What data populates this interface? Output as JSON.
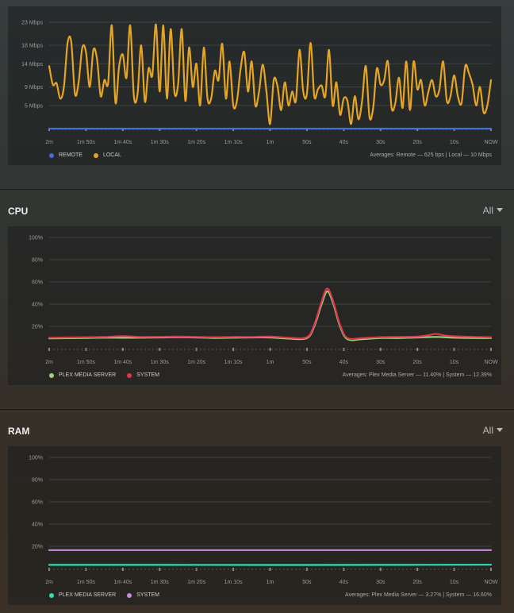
{
  "colors": {
    "remote": "#3f6fd8",
    "local": "#e5a524",
    "pms_cpu": "#9bd27a",
    "system_cpu": "#e0344f",
    "pms_ram": "#2ce0b4",
    "system_ram": "#c58de0",
    "grid": "#3e4343",
    "tick": "#8a8a8a"
  },
  "x_tick_labels": [
    "2m",
    "1m 50s",
    "1m 40s",
    "1m 30s",
    "1m 20s",
    "1m 10s",
    "1m",
    "50s",
    "40s",
    "30s",
    "20s",
    "10s",
    "NOW"
  ],
  "bandwidth": {
    "legend": [
      {
        "name": "REMOTE",
        "color_key": "remote"
      },
      {
        "name": "LOCAL",
        "color_key": "local"
      }
    ],
    "averages": "Averages: Remote — 625 bps | Local — 10 Mbps"
  },
  "cpu": {
    "title": "CPU",
    "range": "All",
    "legend": [
      {
        "name": "PLEX MEDIA SERVER",
        "color_key": "pms_cpu"
      },
      {
        "name": "SYSTEM",
        "color_key": "system_cpu"
      }
    ],
    "averages": "Averages: Plex Media Server — 11.40% | System — 12.39%"
  },
  "ram": {
    "title": "RAM",
    "range": "All",
    "legend": [
      {
        "name": "PLEX MEDIA SERVER",
        "color_key": "pms_ram"
      },
      {
        "name": "SYSTEM",
        "color_key": "system_ram"
      }
    ],
    "averages": "Averages: Plex Media Server — 3.27% | System — 16.60%"
  },
  "chart_data": [
    {
      "type": "line",
      "x_labels": [
        "2m",
        "1m 50s",
        "1m 40s",
        "1m 30s",
        "1m 20s",
        "1m 10s",
        "1m",
        "50s",
        "40s",
        "30s",
        "20s",
        "10s",
        "NOW"
      ],
      "y_tick_labels": [
        "5 Mbps",
        "9 Mbps",
        "14 Mbps",
        "18 Mbps",
        "23 Mbps"
      ],
      "y_ticks": [
        5,
        9,
        14,
        18,
        23
      ],
      "ylim": [
        0,
        24
      ],
      "x_seconds_ago_range": [
        120,
        0
      ],
      "series": [
        {
          "name": "REMOTE",
          "color_key": "remote",
          "points": [
            [
              120,
              0.0
            ],
            [
              0,
              0.0
            ]
          ]
        },
        {
          "name": "LOCAL",
          "color_key": "local",
          "points": [
            [
              120,
              13.5
            ],
            [
              119,
              9.5
            ],
            [
              118,
              9.8
            ],
            [
              117,
              6.5
            ],
            [
              116,
              9.0
            ],
            [
              115,
              18.5
            ],
            [
              114,
              18.7
            ],
            [
              113,
              7.5
            ],
            [
              112,
              10.0
            ],
            [
              111,
              17.5
            ],
            [
              110,
              16.5
            ],
            [
              109,
              9.0
            ],
            [
              108,
              17.0
            ],
            [
              107,
              15.0
            ],
            [
              106,
              7.0
            ],
            [
              105,
              10.5
            ],
            [
              104,
              9.8
            ],
            [
              103,
              22.3
            ],
            [
              102,
              5.6
            ],
            [
              101,
              13.5
            ],
            [
              100,
              16.0
            ],
            [
              99,
              11.0
            ],
            [
              98,
              22.3
            ],
            [
              97,
              7.0
            ],
            [
              96,
              7.5
            ],
            [
              95,
              18.0
            ],
            [
              94,
              5.8
            ],
            [
              93,
              13.0
            ],
            [
              92,
              11.5
            ],
            [
              91,
              22.5
            ],
            [
              90,
              8.0
            ],
            [
              89,
              22.3
            ],
            [
              88,
              6.5
            ],
            [
              87,
              21.5
            ],
            [
              86,
              8.0
            ],
            [
              85,
              9.5
            ],
            [
              84,
              21.5
            ],
            [
              83,
              6.0
            ],
            [
              82,
              17.5
            ],
            [
              81,
              9.0
            ],
            [
              80,
              14.0
            ],
            [
              79,
              5.0
            ],
            [
              78,
              17.5
            ],
            [
              77,
              6.5
            ],
            [
              76,
              6.5
            ],
            [
              75,
              12.5
            ],
            [
              74,
              10.5
            ],
            [
              73,
              18.3
            ],
            [
              72,
              6.5
            ],
            [
              71,
              14.5
            ],
            [
              70,
              5.0
            ],
            [
              69,
              6.0
            ],
            [
              68,
              13.0
            ],
            [
              67,
              16.5
            ],
            [
              66,
              8.0
            ],
            [
              65,
              14.5
            ],
            [
              64,
              5.0
            ],
            [
              63,
              8.0
            ],
            [
              62,
              13.8
            ],
            [
              61,
              8.0
            ],
            [
              60,
              1.0
            ],
            [
              59,
              10.5
            ],
            [
              58,
              9.2
            ],
            [
              57,
              4.0
            ],
            [
              56,
              10.0
            ],
            [
              55,
              5.0
            ],
            [
              54,
              8.0
            ],
            [
              53,
              6.0
            ],
            [
              52,
              17.0
            ],
            [
              51,
              8.0
            ],
            [
              50,
              7.5
            ],
            [
              49,
              18.5
            ],
            [
              48,
              7.0
            ],
            [
              47,
              8.5
            ],
            [
              46,
              9.3
            ],
            [
              45,
              7.0
            ],
            [
              44,
              17.0
            ],
            [
              43,
              5.0
            ],
            [
              42,
              10.0
            ],
            [
              41,
              3.0
            ],
            [
              40,
              6.5
            ],
            [
              39,
              6.0
            ],
            [
              38,
              1.0
            ],
            [
              37,
              7.0
            ],
            [
              36,
              2.0
            ],
            [
              35,
              6.0
            ],
            [
              34,
              13.5
            ],
            [
              33,
              2.5
            ],
            [
              32,
              4.5
            ],
            [
              31,
              13.0
            ],
            [
              30,
              9.5
            ],
            [
              29,
              10.5
            ],
            [
              28,
              14.5
            ],
            [
              27,
              4.5
            ],
            [
              26,
              5.5
            ],
            [
              25,
              11.0
            ],
            [
              24,
              4.5
            ],
            [
              23,
              14.5
            ],
            [
              22,
              4.0
            ],
            [
              21,
              14.5
            ],
            [
              20,
              8.5
            ],
            [
              19,
              10.5
            ],
            [
              18,
              5.0
            ],
            [
              17,
              8.0
            ],
            [
              16,
              10.5
            ],
            [
              15,
              7.0
            ],
            [
              14,
              8.5
            ],
            [
              13,
              14.5
            ],
            [
              12,
              6.0
            ],
            [
              11,
              7.0
            ],
            [
              10,
              11.5
            ],
            [
              9,
              7.0
            ],
            [
              8,
              5.5
            ],
            [
              7,
              13.5
            ],
            [
              6,
              12.0
            ],
            [
              5,
              9.5
            ],
            [
              4,
              5.0
            ],
            [
              3,
              9.0
            ],
            [
              2,
              3.5
            ],
            [
              1,
              5.0
            ],
            [
              0,
              10.5
            ]
          ]
        }
      ]
    },
    {
      "type": "line",
      "title": "CPU",
      "x_labels": [
        "2m",
        "1m 50s",
        "1m 40s",
        "1m 30s",
        "1m 20s",
        "1m 10s",
        "1m",
        "50s",
        "40s",
        "30s",
        "20s",
        "10s",
        "NOW"
      ],
      "y_tick_labels": [
        "20%",
        "40%",
        "60%",
        "80%",
        "100%"
      ],
      "y_ticks": [
        20,
        40,
        60,
        80,
        100
      ],
      "ylim": [
        0,
        100
      ],
      "x_seconds_ago_range": [
        120,
        0
      ],
      "series": [
        {
          "name": "PLEX MEDIA SERVER",
          "color_key": "pms_cpu",
          "points": [
            [
              120,
              9.2
            ],
            [
              110,
              9.5
            ],
            [
              105,
              9.8
            ],
            [
              100,
              9.7
            ],
            [
              95,
              9.8
            ],
            [
              90,
              10.0
            ],
            [
              85,
              10.2
            ],
            [
              80,
              10.0
            ],
            [
              75,
              9.6
            ],
            [
              70,
              9.8
            ],
            [
              65,
              10.0
            ],
            [
              60,
              10.0
            ],
            [
              55,
              9.0
            ],
            [
              50,
              9.5
            ],
            [
              48,
              20.0
            ],
            [
              46,
              40.0
            ],
            [
              44.5,
              51.5
            ],
            [
              43,
              42.0
            ],
            [
              41,
              20.0
            ],
            [
              39,
              8.5
            ],
            [
              35,
              8.5
            ],
            [
              30,
              9.5
            ],
            [
              25,
              9.5
            ],
            [
              20,
              10.0
            ],
            [
              15,
              10.5
            ],
            [
              10,
              9.8
            ],
            [
              5,
              9.5
            ],
            [
              0,
              9.5
            ]
          ]
        },
        {
          "name": "SYSTEM",
          "color_key": "system_cpu",
          "points": [
            [
              120,
              9.8
            ],
            [
              110,
              10.2
            ],
            [
              105,
              10.5
            ],
            [
              100,
              11.2
            ],
            [
              95,
              10.5
            ],
            [
              90,
              10.6
            ],
            [
              85,
              10.8
            ],
            [
              80,
              10.5
            ],
            [
              75,
              10.2
            ],
            [
              70,
              10.5
            ],
            [
              65,
              10.5
            ],
            [
              60,
              10.8
            ],
            [
              55,
              9.8
            ],
            [
              50,
              10.3
            ],
            [
              48,
              21.5
            ],
            [
              46,
              42.5
            ],
            [
              44.5,
              54.0
            ],
            [
              43,
              44.0
            ],
            [
              41,
              21.5
            ],
            [
              39,
              9.5
            ],
            [
              35,
              9.5
            ],
            [
              30,
              10.3
            ],
            [
              25,
              10.5
            ],
            [
              20,
              10.8
            ],
            [
              17,
              12.0
            ],
            [
              15,
              13.2
            ],
            [
              12,
              11.5
            ],
            [
              8,
              10.8
            ],
            [
              0,
              10.2
            ]
          ]
        }
      ]
    },
    {
      "type": "line",
      "title": "RAM",
      "x_labels": [
        "2m",
        "1m 50s",
        "1m 40s",
        "1m 30s",
        "1m 20s",
        "1m 10s",
        "1m",
        "50s",
        "40s",
        "30s",
        "20s",
        "10s",
        "NOW"
      ],
      "y_tick_labels": [
        "20%",
        "40%",
        "60%",
        "80%",
        "100%"
      ],
      "y_ticks": [
        20,
        40,
        60,
        80,
        100
      ],
      "ylim": [
        0,
        100
      ],
      "x_seconds_ago_range": [
        120,
        0
      ],
      "series": [
        {
          "name": "PLEX MEDIA SERVER",
          "color_key": "pms_ram",
          "points": [
            [
              120,
              3.3
            ],
            [
              90,
              3.3
            ],
            [
              60,
              3.2
            ],
            [
              30,
              3.3
            ],
            [
              0,
              3.4
            ]
          ]
        },
        {
          "name": "SYSTEM",
          "color_key": "system_ram",
          "points": [
            [
              120,
              16.6
            ],
            [
              90,
              16.6
            ],
            [
              60,
              16.6
            ],
            [
              30,
              16.6
            ],
            [
              0,
              16.6
            ]
          ]
        }
      ]
    }
  ]
}
